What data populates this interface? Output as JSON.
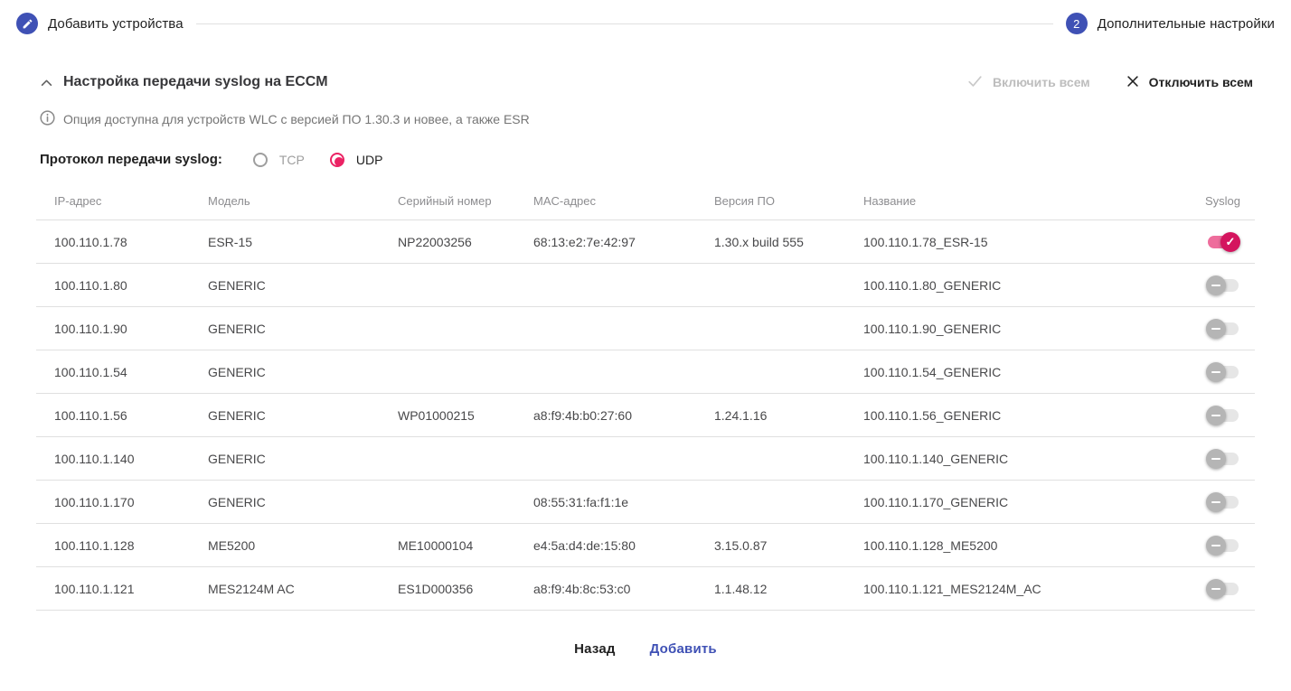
{
  "stepper": {
    "step1": {
      "label": "Добавить устройства",
      "icon": "pencil-icon"
    },
    "step2": {
      "number": "2",
      "label": "Дополнительные настройки"
    }
  },
  "section": {
    "title": "Настройка передачи syslog на ECCM",
    "enable_all_label": "Включить всем",
    "disable_all_label": "Отключить всем",
    "info": "Опция доступна для устройств WLC с версией ПО 1.30.3 и новее, а также ESR"
  },
  "protocol": {
    "label": "Протокол передачи syslog:",
    "options": [
      {
        "label": "TCP",
        "selected": false
      },
      {
        "label": "UDP",
        "selected": true
      }
    ]
  },
  "table": {
    "headers": [
      "IP-адрес",
      "Модель",
      "Серийный номер",
      "MAC-адрес",
      "Версия ПО",
      "Название",
      "Syslog"
    ],
    "rows": [
      {
        "ip": "100.110.1.78",
        "model": "ESR-15",
        "serial": "NP22003256",
        "mac": "68:13:e2:7e:42:97",
        "version": "1.30.x build 555",
        "name": "100.110.1.78_ESR-15",
        "syslog": true
      },
      {
        "ip": "100.110.1.80",
        "model": "GENERIC",
        "serial": "",
        "mac": "",
        "version": "",
        "name": "100.110.1.80_GENERIC",
        "syslog": false
      },
      {
        "ip": "100.110.1.90",
        "model": "GENERIC",
        "serial": "",
        "mac": "",
        "version": "",
        "name": "100.110.1.90_GENERIC",
        "syslog": false
      },
      {
        "ip": "100.110.1.54",
        "model": "GENERIC",
        "serial": "",
        "mac": "",
        "version": "",
        "name": "100.110.1.54_GENERIC",
        "syslog": false
      },
      {
        "ip": "100.110.1.56",
        "model": "GENERIC",
        "serial": "WP01000215",
        "mac": "a8:f9:4b:b0:27:60",
        "version": "1.24.1.16",
        "name": "100.110.1.56_GENERIC",
        "syslog": false
      },
      {
        "ip": "100.110.1.140",
        "model": "GENERIC",
        "serial": "",
        "mac": "",
        "version": "",
        "name": "100.110.1.140_GENERIC",
        "syslog": false
      },
      {
        "ip": "100.110.1.170",
        "model": "GENERIC",
        "serial": "",
        "mac": "08:55:31:fa:f1:1e",
        "version": "",
        "name": "100.110.1.170_GENERIC",
        "syslog": false
      },
      {
        "ip": "100.110.1.128",
        "model": "ME5200",
        "serial": "ME10000104",
        "mac": "e4:5a:d4:de:15:80",
        "version": "3.15.0.87",
        "name": "100.110.1.128_ME5200",
        "syslog": false
      },
      {
        "ip": "100.110.1.121",
        "model": "MES2124M AC",
        "serial": "ES1D000356",
        "mac": "a8:f9:4b:8c:53:c0",
        "version": "1.1.48.12",
        "name": "100.110.1.121_MES2124M_AC",
        "syslog": false
      }
    ]
  },
  "footer": {
    "back_label": "Назад",
    "add_label": "Добавить"
  },
  "colors": {
    "step_circle_blue": "#3f51b5",
    "accent_pink": "#eb2364",
    "switch_on_thumb": "#d4145e",
    "switch_on_track": "#ee6d9c",
    "switch_off_thumb": "#b5b5b5",
    "add_button_blue": "#3f51b5",
    "disabled_grey": "#bdbdbd",
    "row_border": "#e0e0e0"
  }
}
